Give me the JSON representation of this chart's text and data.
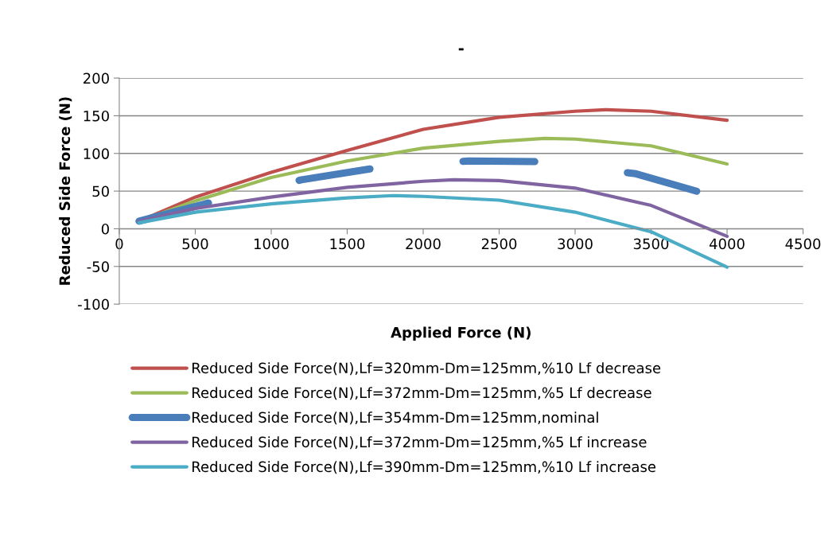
{
  "chart_data": {
    "type": "line",
    "title": "-",
    "xlabel": "Applied Force (N)",
    "ylabel": "Reduced Side Force (N)",
    "xlim": [
      0,
      4500
    ],
    "xticks": [
      0,
      500,
      1000,
      1500,
      2000,
      2500,
      3000,
      3500,
      4000,
      4500
    ],
    "ylim": [
      -100,
      200
    ],
    "yticks": [
      -100,
      -50,
      0,
      50,
      100,
      150,
      200
    ],
    "grid": "y",
    "legend": "bottom",
    "marker": "none",
    "series": [
      {
        "name": "Reduced Side Force(N),Lf=320mm-Dm=125mm,%10 Lf decrease",
        "color": "#c0504d",
        "x": [
          130,
          500,
          1000,
          1500,
          2000,
          2500,
          3000,
          3200,
          3500,
          4000
        ],
        "values": [
          10,
          42,
          75,
          104,
          132,
          148,
          156,
          158,
          156,
          144
        ]
      },
      {
        "name": "Reduced Side Force(N),Lf=372mm-Dm=125mm,%5 Lf decrease",
        "color": "#9bbb59",
        "x": [
          130,
          500,
          1000,
          1500,
          2000,
          2500,
          2800,
          3000,
          3500,
          4000
        ],
        "values": [
          10,
          37,
          68,
          90,
          107,
          116,
          120,
          119,
          110,
          86
        ]
      },
      {
        "name": "Reduced Side Force(N),Lf=354mm-Dm=125mm,nominal",
        "color": "#4a7ebb",
        "line_style": "dashed",
        "x": [
          130,
          600,
          1200,
          1700,
          2300,
          2800,
          3400,
          3850
        ],
        "values": [
          10,
          35,
          65,
          81,
          90,
          89,
          73,
          47
        ]
      },
      {
        "name": "Reduced Side Force(N),Lf=372mm-Dm=125mm,%5 Lf increase",
        "color": "#8064a2",
        "x": [
          130,
          500,
          1000,
          1500,
          2000,
          2200,
          2500,
          3000,
          3500,
          4000
        ],
        "values": [
          10,
          27,
          42,
          55,
          63,
          65,
          64,
          54,
          31,
          -10
        ]
      },
      {
        "name": "Reduced Side Force(N),Lf=390mm-Dm=125mm,%10 Lf increase",
        "color": "#4bacc6",
        "x": [
          130,
          500,
          1000,
          1500,
          1800,
          2000,
          2500,
          3000,
          3500,
          4000
        ],
        "values": [
          8,
          22,
          33,
          41,
          44,
          43,
          38,
          22,
          -4,
          -51
        ]
      }
    ]
  }
}
